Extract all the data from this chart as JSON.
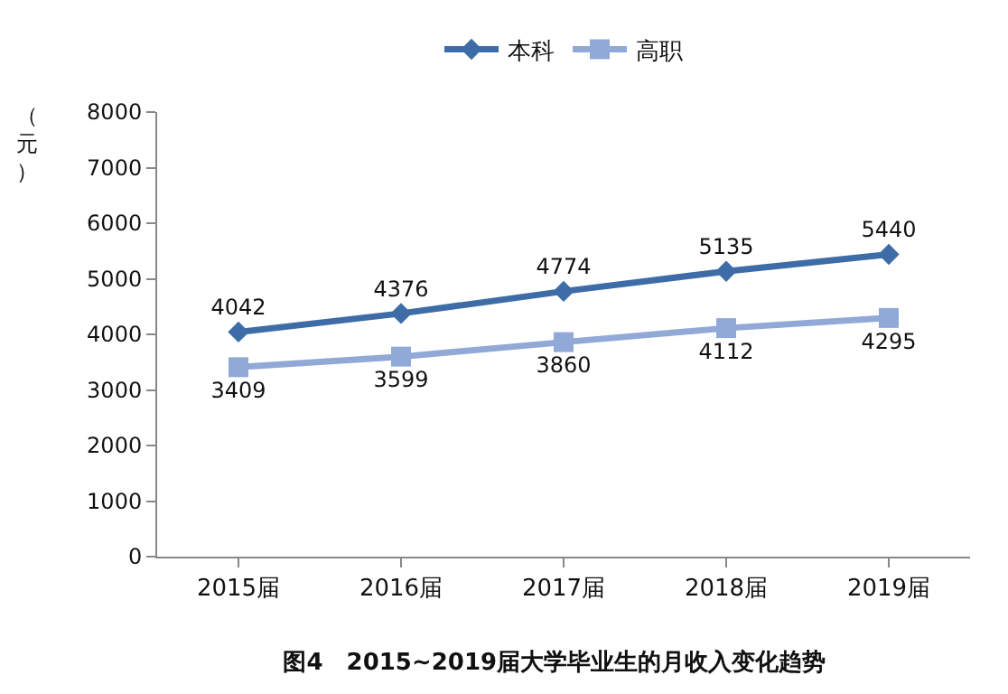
{
  "chart_data": {
    "type": "line",
    "title": "图4　2015~2019届大学毕业生的月收入变化趋势",
    "ylabel": "（元）",
    "categories": [
      "2015届",
      "2016届",
      "2017届",
      "2018届",
      "2019届"
    ],
    "series": [
      {
        "name": "本科",
        "color": "#3e6ca6",
        "values": [
          4042,
          4376,
          4774,
          5135,
          5440
        ],
        "marker": "diamond"
      },
      {
        "name": "高职",
        "color": "#91a9d6",
        "values": [
          3409,
          3599,
          3860,
          4112,
          4295
        ],
        "marker": "square"
      }
    ],
    "ylim": [
      0,
      8000
    ],
    "yticks": [
      0,
      1000,
      2000,
      3000,
      4000,
      5000,
      6000,
      7000,
      8000
    ],
    "grid": false,
    "legend": "top",
    "data_labels": true,
    "line_style": "solid"
  }
}
